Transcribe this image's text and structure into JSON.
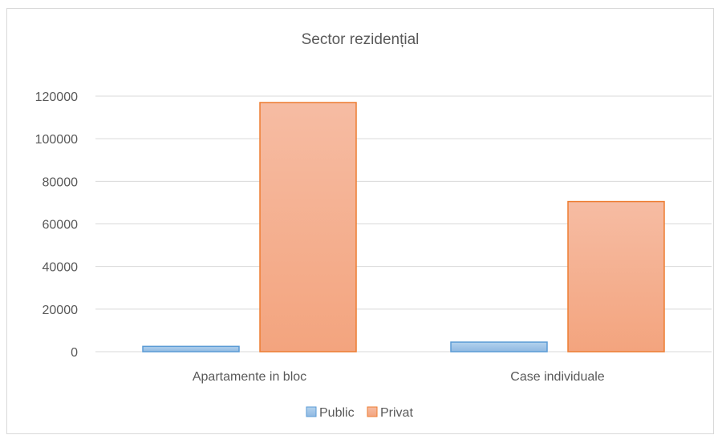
{
  "chart_data": {
    "type": "bar",
    "title": "Sector  rezidențial",
    "xlabel": "",
    "ylabel": "",
    "categories": [
      "Apartamente in bloc",
      "Case individuale"
    ],
    "series": [
      {
        "name": "Public",
        "values": [
          2500,
          4500
        ]
      },
      {
        "name": "Privat",
        "values": [
          117000,
          70500
        ]
      }
    ],
    "ylim": [
      0,
      120000
    ],
    "yticks": [
      "0",
      "20000",
      "40000",
      "60000",
      "80000",
      "100000",
      "120000"
    ],
    "grid": true,
    "legend": "bottom-center",
    "colors": {
      "Public": {
        "fill": "#9dc3e6",
        "stroke": "#5b9bd5"
      },
      "Privat": {
        "fill": "#f4b183",
        "stroke": "#ed7d31"
      }
    }
  }
}
